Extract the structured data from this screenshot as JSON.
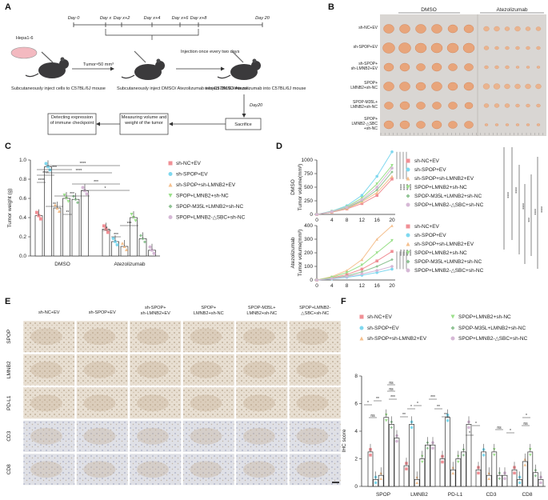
{
  "panels": {
    "A": {
      "label": "A",
      "timeline": [
        "Day 0",
        "Day x",
        "Day x+2",
        "Day x+4",
        "Day x+6",
        "Day x+8",
        "Day 20"
      ],
      "cell_line": "Hepa1-6",
      "tumor_size": "Tumor≈50 mm³",
      "injection_freq": "Injection once every two days",
      "day20": "Day20",
      "step1": "Subcutaneously inject cells to C57BL/6J mouse",
      "step2": "Subcutaneously inject DMSO/ Atezolizumab into C57BL/6J mouse",
      "step3": "reinject DMSO/Atezolizumab into C57BL/6J mouse",
      "box_sacrifice": "Sacrifice",
      "box_measure": "Measuring volume and weight of the tumor",
      "box_detect": "Detecting expression of immune checkpoint"
    },
    "B": {
      "label": "B",
      "headers": [
        "DMSO",
        "Atezolizumab"
      ],
      "rows": [
        "sh-NC+EV",
        "sh-SPOP+EV",
        "sh-SPOP+ sh-LMNB2+EV",
        "SPOP+ LMNB2+sh-NC",
        "SPOP-M35L+ LMNB2+sh-NC",
        "SPOP+ LMNB2-△SBC +sh-NC"
      ]
    },
    "C": {
      "label": "C"
    },
    "D": {
      "label": "D"
    },
    "E": {
      "label": "E",
      "columns": [
        "sh-NC+EV",
        "sh-SPOP+EV",
        "sh-SPOP+ sh-LMNB2+EV",
        "SPOP+ LMNB2+sh-NC",
        "SPOP-M35L+ LMNB2+sh-NC",
        "SPOP+LMNB2- △SBC+sh-NC"
      ],
      "rows": [
        "SPOP",
        "LMNB2",
        "PD-L1",
        "CD3",
        "CD8"
      ]
    },
    "F": {
      "label": "F"
    }
  },
  "groups": [
    "sh-NC+EV",
    "sh-SPOP+EV",
    "sh-SPOP+sh-LMNB2+EV",
    "SPOP+LMNB2+sh-NC",
    "SPOP-M35L+LMNB2+sh-NC",
    "SPOP+LMNB2-△SBC+sh-NC"
  ],
  "colors": [
    "#f08f95",
    "#7fd8ef",
    "#f5c08e",
    "#9be08a",
    "#8fc394",
    "#d6b8d6"
  ],
  "chart_data": [
    {
      "id": "C",
      "type": "bar",
      "ylabel": "Tumor weight (g)",
      "ylim": [
        0,
        1.0
      ],
      "yticks": [
        "0.0",
        "0.2",
        "0.4",
        "0.6",
        "0.8",
        "1.0"
      ],
      "categories": [
        "DMSO",
        "Atezolizumab"
      ],
      "series": [
        {
          "name": "sh-NC+EV",
          "values": [
            0.42,
            0.28
          ]
        },
        {
          "name": "sh-SPOP+EV",
          "values": [
            0.93,
            0.15
          ]
        },
        {
          "name": "sh-SPOP+sh-LMNB2+EV",
          "values": [
            0.5,
            0.1
          ]
        },
        {
          "name": "SPOP+LMNB2+sh-NC",
          "values": [
            0.6,
            0.4
          ]
        },
        {
          "name": "SPOP-M35L+LMNB2+sh-NC",
          "values": [
            0.59,
            0.18
          ]
        },
        {
          "name": "SPOP+LMNB2-△SBC+sh-NC",
          "values": [
            0.68,
            0.06
          ]
        }
      ],
      "significance": [
        "****",
        "****",
        "***",
        "****",
        "****",
        "***",
        "*",
        "***",
        "**",
        "**",
        "*",
        "***",
        "***"
      ]
    },
    {
      "id": "D-top",
      "type": "line",
      "ylabel": "Tumor volume(mm³)",
      "group_label": "DMSO",
      "x": [
        0,
        4,
        8,
        12,
        16,
        20
      ],
      "xticks": [
        "0",
        "4",
        "8",
        "12",
        "16",
        "20"
      ],
      "ylim": [
        0,
        1000
      ],
      "yticks": [
        "0",
        "250",
        "500",
        "750",
        "1000"
      ],
      "series": [
        {
          "name": "sh-NC+EV",
          "values": [
            0,
            40,
            100,
            200,
            350,
            650
          ]
        },
        {
          "name": "sh-SPOP+EV",
          "values": [
            0,
            60,
            160,
            350,
            700,
            1150
          ]
        },
        {
          "name": "sh-SPOP+sh-LMNB2+EV",
          "values": [
            0,
            45,
            110,
            230,
            400,
            700
          ]
        },
        {
          "name": "SPOP+LMNB2+sh-NC",
          "values": [
            0,
            55,
            140,
            300,
            560,
            900
          ]
        },
        {
          "name": "SPOP-M35L+LMNB2+sh-NC",
          "values": [
            0,
            50,
            120,
            250,
            450,
            780
          ]
        },
        {
          "name": "SPOP+LMNB2-△SBC+sh-NC",
          "values": [
            0,
            52,
            130,
            270,
            500,
            850
          ]
        }
      ],
      "significance": [
        "****",
        "****",
        "****",
        "****"
      ]
    },
    {
      "id": "D-bottom",
      "type": "line",
      "ylabel": "Tumor volume(mm³)",
      "group_label": "Atezolizumab",
      "x": [
        0,
        4,
        8,
        12,
        16,
        20
      ],
      "xticks": [
        "0",
        "4",
        "8",
        "12",
        "16",
        "20"
      ],
      "ylim": [
        0,
        400
      ],
      "yticks": [
        "0",
        "100",
        "200",
        "300",
        "400"
      ],
      "series": [
        {
          "name": "sh-NC+EV",
          "values": [
            0,
            15,
            40,
            80,
            140,
            210
          ]
        },
        {
          "name": "sh-SPOP+EV",
          "values": [
            0,
            8,
            20,
            35,
            55,
            80
          ]
        },
        {
          "name": "sh-SPOP+sh-LMNB2+EV",
          "values": [
            0,
            25,
            70,
            150,
            300,
            400
          ]
        },
        {
          "name": "SPOP+LMNB2+sh-NC",
          "values": [
            0,
            20,
            55,
            110,
            200,
            290
          ]
        },
        {
          "name": "SPOP-M35L+LMNB2+sh-NC",
          "values": [
            0,
            12,
            30,
            60,
            100,
            150
          ]
        },
        {
          "name": "SPOP+LMNB2-△SBC+sh-NC",
          "values": [
            0,
            10,
            25,
            45,
            70,
            100
          ]
        }
      ],
      "significance": [
        "****",
        "****",
        "****",
        "****"
      ],
      "right_brackets": [
        "****",
        "****",
        "****",
        "***",
        "****",
        "****"
      ]
    },
    {
      "id": "F",
      "type": "bar",
      "ylabel": "IHC score",
      "ylim": [
        0,
        8
      ],
      "yticks": [
        "0",
        "2",
        "4",
        "6",
        "8"
      ],
      "categories": [
        "SPOP",
        "LMNB2",
        "PD-L1",
        "CD3",
        "CD8"
      ],
      "series": [
        {
          "name": "sh-NC+EV",
          "values": [
            2.5,
            1.5,
            2.0,
            1.2,
            1.2
          ]
        },
        {
          "name": "sh-SPOP+EV",
          "values": [
            0.5,
            4.5,
            5.0,
            2.5,
            0.5
          ]
        },
        {
          "name": "sh-SPOP+sh-LMNB2+EV",
          "values": [
            0.8,
            0.5,
            1.2,
            0.8,
            1.8
          ]
        },
        {
          "name": "SPOP+LMNB2+sh-NC",
          "values": [
            5.0,
            2.0,
            2.0,
            2.5,
            2.5
          ]
        },
        {
          "name": "SPOP-M35L+LMNB2+sh-NC",
          "values": [
            4.5,
            3.0,
            2.5,
            0.8,
            1.0
          ]
        },
        {
          "name": "SPOP+LMNB2-△SBC+sh-NC",
          "values": [
            3.5,
            3.0,
            4.5,
            0.8,
            0.5
          ]
        }
      ],
      "significance": [
        "*",
        "ns",
        "ns",
        "ns",
        "**",
        "***",
        "*",
        "*",
        "**",
        "***",
        "**",
        "**",
        "*",
        "*",
        "ns",
        "*",
        "ns",
        "*"
      ]
    }
  ]
}
